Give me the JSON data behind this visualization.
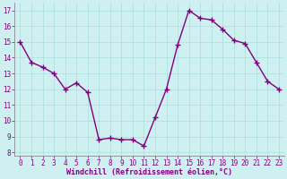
{
  "x": [
    0,
    1,
    2,
    3,
    4,
    5,
    6,
    7,
    8,
    9,
    10,
    11,
    12,
    13,
    14,
    15,
    16,
    17,
    18,
    19,
    20,
    21,
    22,
    23
  ],
  "y": [
    15.0,
    13.7,
    13.4,
    13.0,
    12.0,
    12.4,
    11.8,
    8.8,
    8.9,
    8.8,
    8.8,
    8.4,
    10.2,
    12.0,
    14.8,
    17.0,
    16.5,
    16.4,
    15.8,
    15.1,
    14.9,
    13.7,
    12.5,
    12.0
  ],
  "line_color": "#800080",
  "marker": "+",
  "marker_size": 4,
  "background_color": "#cff0f0",
  "grid_color": "#aadddd",
  "xlabel": "Windchill (Refroidissement éolien,°C)",
  "ylim": [
    7.8,
    17.5
  ],
  "xlim": [
    -0.5,
    23.5
  ],
  "yticks": [
    8,
    9,
    10,
    11,
    12,
    13,
    14,
    15,
    16,
    17
  ],
  "xticks": [
    0,
    1,
    2,
    3,
    4,
    5,
    6,
    7,
    8,
    9,
    10,
    11,
    12,
    13,
    14,
    15,
    16,
    17,
    18,
    19,
    20,
    21,
    22,
    23
  ],
  "tick_label_fontsize": 5.5,
  "xlabel_fontsize": 6.0,
  "line_width": 1.0,
  "tick_color": "#800080",
  "label_color": "#800080"
}
